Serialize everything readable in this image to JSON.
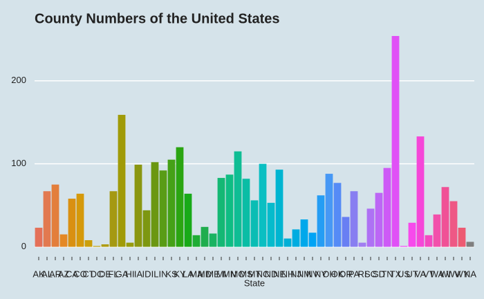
{
  "chart_data": {
    "type": "bar",
    "title": "County Numbers of the United States",
    "x_label": "State",
    "categories": [
      "AK",
      "AL",
      "AR",
      "AZ",
      "CA",
      "CO",
      "CT",
      "DC",
      "DE",
      "FL",
      "GA",
      "HI",
      "IA",
      "ID",
      "IL",
      "IN",
      "KS",
      "KY",
      "LA",
      "MA",
      "MD",
      "ME",
      "MI",
      "MN",
      "MO",
      "MS",
      "MT",
      "NC",
      "ND",
      "NE",
      "NH",
      "NJ",
      "NM",
      "NV",
      "NY",
      "OH",
      "OK",
      "OR",
      "PA",
      "RI",
      "SC",
      "SD",
      "TN",
      "TX",
      "US",
      "UT",
      "VA",
      "VT",
      "WA",
      "WI",
      "WV",
      "WY",
      "NA"
    ],
    "values": [
      23,
      67,
      75,
      15,
      58,
      64,
      8,
      1,
      3,
      67,
      159,
      5,
      99,
      44,
      102,
      92,
      105,
      120,
      64,
      14,
      24,
      16,
      83,
      87,
      115,
      82,
      56,
      100,
      53,
      93,
      10,
      21,
      33,
      17,
      62,
      88,
      77,
      36,
      67,
      5,
      46,
      65,
      95,
      254,
      1,
      29,
      133,
      14,
      39,
      72,
      55,
      23,
      6
    ],
    "colors": [
      "hsl(10,72%,62%)",
      "hsl(17,72%,60%)",
      "hsl(24,75%,56%)",
      "hsl(31,78%,52%)",
      "hsl(38,85%,46%)",
      "hsl(42,90%,44%)",
      "hsl(46,90%,42%)",
      "hsl(50,85%,40%)",
      "hsl(53,80%,38%)",
      "hsl(55,80%,36%)",
      "hsl(58,90%,33%)",
      "hsl(62,85%,33%)",
      "hsl(66,80%,33%)",
      "hsl(72,80%,33%)",
      "hsl(80,80%,33%)",
      "hsl(90,75%,35%)",
      "hsl(100,75%,36%)",
      "hsl(110,80%,36%)",
      "hsl(120,75%,38%)",
      "hsl(130,70%,40%)",
      "hsl(140,70%,40%)",
      "hsl(148,75%,40%)",
      "hsl(155,80%,40%)",
      "hsl(160,85%,40%)",
      "hsl(166,85%,40%)",
      "hsl(172,90%,39%)",
      "hsl(177,90%,39%)",
      "hsl(181,90%,40%)",
      "hsl(185,95%,41%)",
      "hsl(188,100%,41%)",
      "hsl(191,100%,42%)",
      "hsl(194,100%,44%)",
      "hsl(197,100%,46%)",
      "hsl(200,100%,48%)",
      "hsl(205,90%,55%)",
      "hsl(212,90%,62%)",
      "hsl(220,90%,65%)",
      "hsl(230,85%,68%)",
      "hsl(245,80%,72%)",
      "hsl(258,80%,72%)",
      "hsl(268,85%,70%)",
      "hsl(276,88%,68%)",
      "hsl(284,90%,66%)",
      "hsl(292,90%,64%)",
      "hsl(298,90%,62%)",
      "hsl(304,92%,63%)",
      "hsl(310,90%,62%)",
      "hsl(318,88%,62%)",
      "hsl(326,86%,63%)",
      "hsl(334,84%,63%)",
      "hsl(342,82%,64%)",
      "hsl(350,80%,64%)",
      "#7f7f7f"
    ],
    "ylim": [
      -12,
      264
    ],
    "yticks": [
      0,
      100,
      200
    ],
    "grid": true
  }
}
